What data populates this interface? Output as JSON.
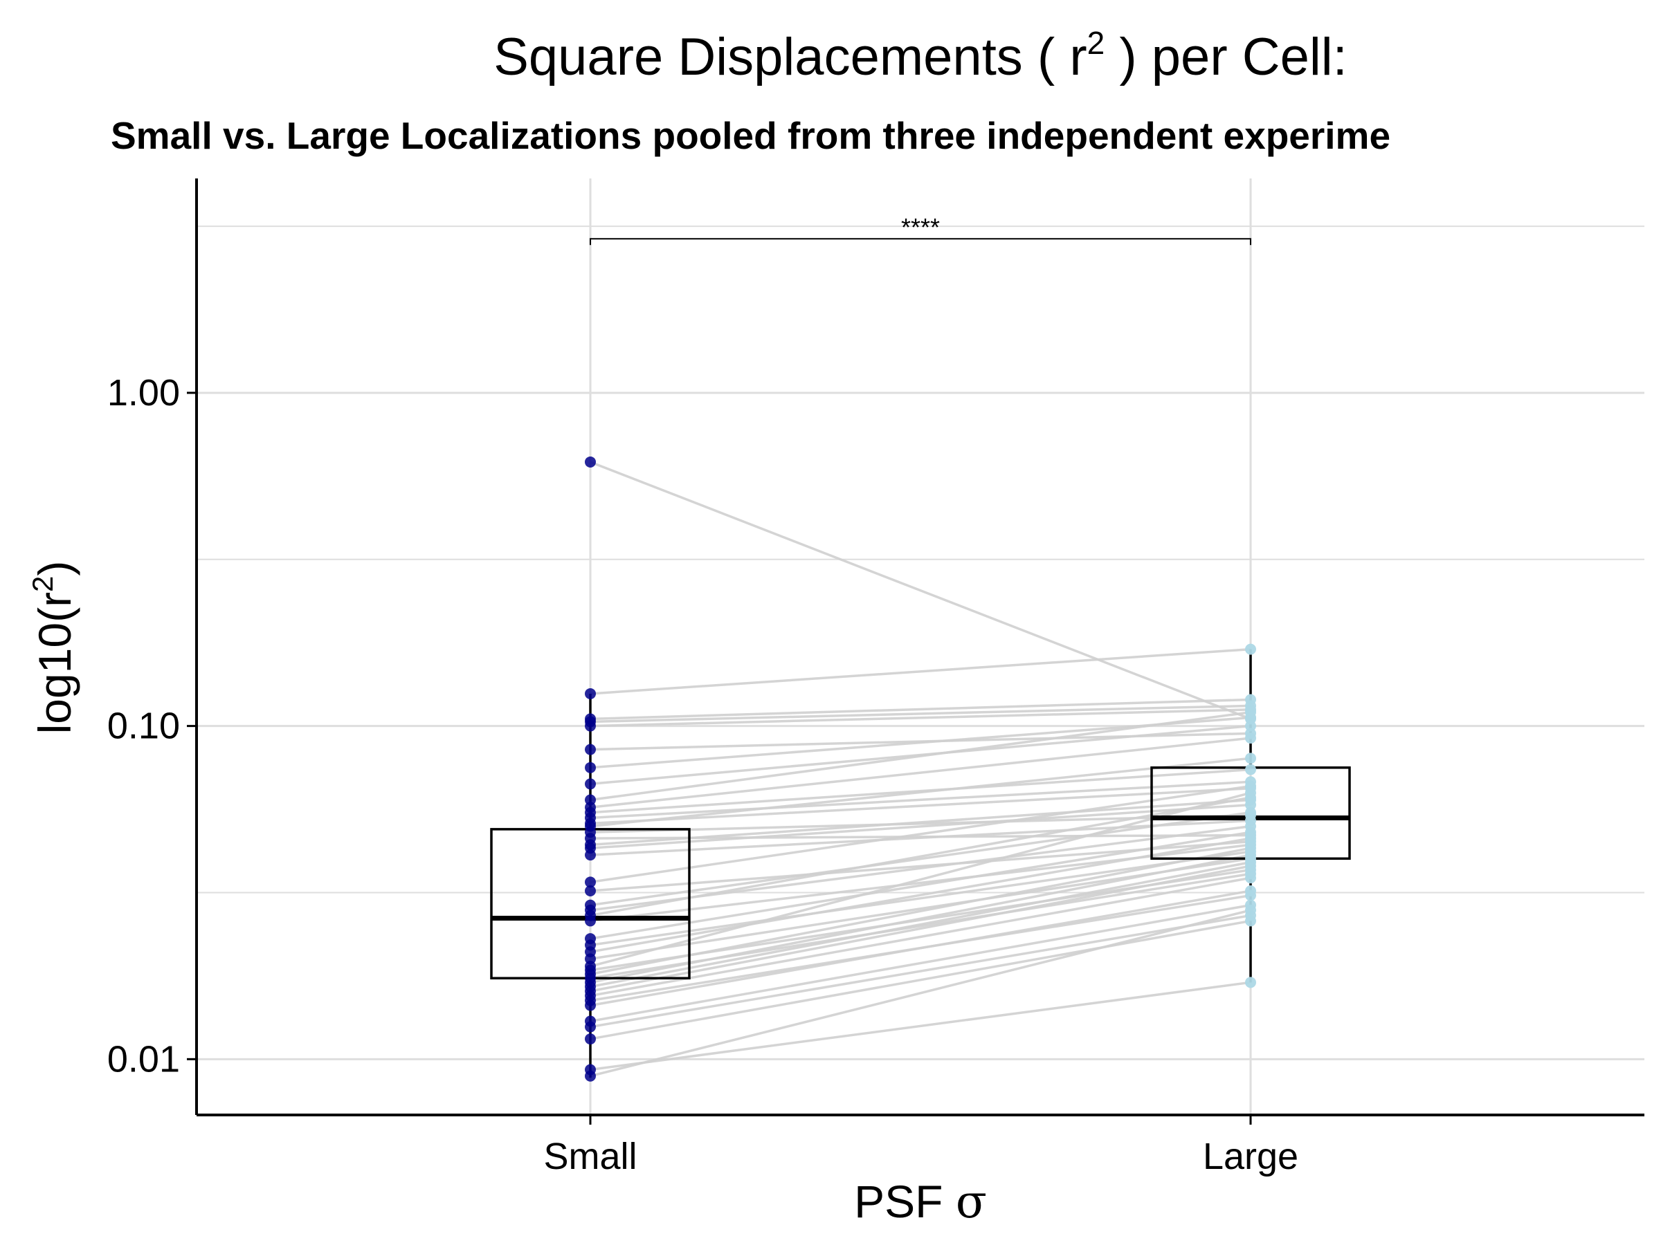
{
  "chart_data": {
    "type": "boxplot-paired",
    "title_prefix": "Square Displacements ( r",
    "title_superscript": "2",
    "title_suffix": " ) per Cell:",
    "subtitle": "Small vs. Large Localizations pooled from three independent experime",
    "xlabel_prefix": "PSF ",
    "xlabel_symbol": "σ",
    "ylabel_prefix": "log10(r",
    "ylabel_superscript": "2",
    "ylabel_suffix": ")",
    "y_scale": "log10",
    "ylim": [
      0.0068,
      4.4
    ],
    "y_ticks": [
      {
        "value": 1.0,
        "label": "1.00"
      },
      {
        "value": 0.1,
        "label": "0.10"
      },
      {
        "value": 0.01,
        "label": "0.01"
      }
    ],
    "categories": [
      "Small",
      "Large"
    ],
    "grid": true,
    "significance": {
      "label": "****",
      "y_value": 2.9
    },
    "boxes": [
      {
        "category": "Small",
        "q1": 0.0175,
        "median": 0.0265,
        "q3": 0.049,
        "whisker_low": 0.0088,
        "whisker_high": 0.125
      },
      {
        "category": "Large",
        "q1": 0.04,
        "median": 0.053,
        "q3": 0.075,
        "whisker_low": 0.017,
        "whisker_high": 0.17
      }
    ],
    "colors": {
      "small_points": "#00008b",
      "large_points": "#add8e6",
      "pair_lines": "#d0d0d0",
      "grid": "#dedede",
      "axis": "#000000"
    },
    "pairs": [
      [
        0.62,
        0.105
      ],
      [
        0.125,
        0.17
      ],
      [
        0.105,
        0.12
      ],
      [
        0.103,
        0.115
      ],
      [
        0.1,
        0.112
      ],
      [
        0.085,
        0.095
      ],
      [
        0.075,
        0.106
      ],
      [
        0.067,
        0.1
      ],
      [
        0.06,
        0.11
      ],
      [
        0.057,
        0.092
      ],
      [
        0.055,
        0.074
      ],
      [
        0.053,
        0.068
      ],
      [
        0.051,
        0.065
      ],
      [
        0.05,
        0.08
      ],
      [
        0.048,
        0.054
      ],
      [
        0.046,
        0.047
      ],
      [
        0.044,
        0.06
      ],
      [
        0.043,
        0.058
      ],
      [
        0.041,
        0.052
      ],
      [
        0.034,
        0.066
      ],
      [
        0.032,
        0.045
      ],
      [
        0.029,
        0.055
      ],
      [
        0.028,
        0.05
      ],
      [
        0.027,
        0.061
      ],
      [
        0.026,
        0.044
      ],
      [
        0.023,
        0.048
      ],
      [
        0.022,
        0.042
      ],
      [
        0.021,
        0.046
      ],
      [
        0.02,
        0.04
      ],
      [
        0.019,
        0.063
      ],
      [
        0.0185,
        0.037
      ],
      [
        0.018,
        0.043
      ],
      [
        0.0175,
        0.036
      ],
      [
        0.017,
        0.041
      ],
      [
        0.0165,
        0.039
      ],
      [
        0.016,
        0.038
      ],
      [
        0.0155,
        0.035
      ],
      [
        0.015,
        0.031
      ],
      [
        0.0145,
        0.032
      ],
      [
        0.013,
        0.029
      ],
      [
        0.0125,
        0.027
      ],
      [
        0.0115,
        0.026
      ],
      [
        0.0093,
        0.017
      ],
      [
        0.0089,
        0.028
      ]
    ]
  }
}
